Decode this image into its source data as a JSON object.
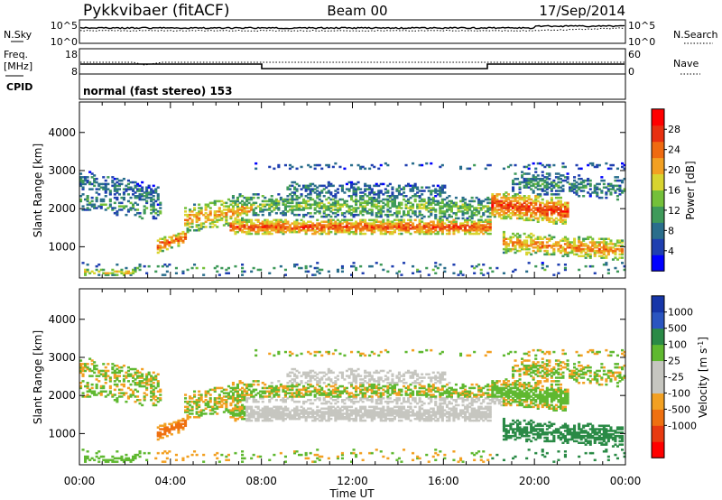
{
  "header": {
    "station": "Pykkvibaer (fitACF)",
    "beam": "Beam 00",
    "date": "17/Sep/2014"
  },
  "panels": {
    "nsky": {
      "label": "N.Sky",
      "left_ticks": [
        "10^5",
        "10^0"
      ],
      "right_label": "N.Search",
      "right_ticks": [
        "10^5",
        "10^0"
      ]
    },
    "freq": {
      "label_line1": "Freq.",
      "label_line2": "[MHz]",
      "left_ticks": [
        "18",
        "8"
      ],
      "right_label": "Nave",
      "right_ticks": [
        "60",
        "0"
      ]
    },
    "cpid": {
      "label": "CPID",
      "text": "normal (fast stereo) 153"
    }
  },
  "colors": {
    "power_scale": [
      "#0000ff",
      "#1f3fb0",
      "#2a6e8c",
      "#3f9a5a",
      "#74c03a",
      "#d8d430",
      "#f2a022",
      "#ef6a10",
      "#e83010",
      "#ff0000"
    ],
    "velocity_scale": [
      "#1636a8",
      "#2a55c0",
      "#2a8a46",
      "#5fb830",
      "#c6c6c0",
      "#c6c6c0",
      "#f2a022",
      "#ef7010",
      "#e83a10",
      "#ff0000"
    ]
  },
  "chart_data": [
    {
      "type": "heatmap",
      "title": "",
      "xlabel": "Time UT",
      "ylabel": "Slant Range [km]",
      "x_ticks": [
        "00:00",
        "04:00",
        "08:00",
        "12:00",
        "16:00",
        "20:00",
        "00:00"
      ],
      "x_range_hours": [
        0,
        24
      ],
      "y_ticks": [
        1000,
        2000,
        3000,
        4000
      ],
      "ylim": [
        180,
        4800
      ],
      "colorbar": {
        "label": "Power [dB]",
        "ticks": [
          4,
          8,
          12,
          16,
          20,
          24,
          28
        ],
        "range": [
          0,
          32
        ]
      }
    },
    {
      "type": "heatmap",
      "title": "",
      "xlabel": "Time UT",
      "ylabel": "Slant Range [km]",
      "x_ticks": [
        "00:00",
        "04:00",
        "08:00",
        "12:00",
        "16:00",
        "20:00",
        "00:00"
      ],
      "x_range_hours": [
        0,
        24
      ],
      "y_ticks": [
        1000,
        2000,
        3000,
        4000
      ],
      "ylim": [
        180,
        4800
      ],
      "colorbar": {
        "label": "Velocity [m s^-1]",
        "ticks": [
          "1000",
          "500",
          "100",
          "25",
          "-25",
          "-100",
          "-500",
          "-1000"
        ]
      }
    }
  ]
}
